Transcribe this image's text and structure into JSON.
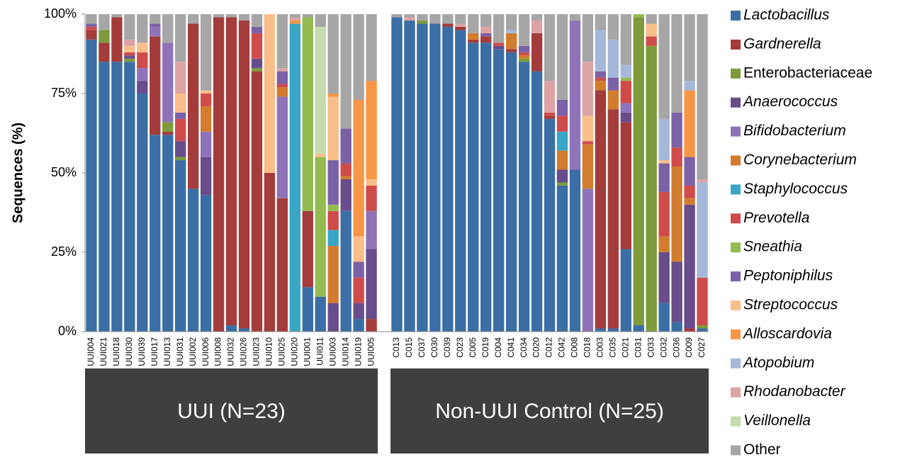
{
  "chart_data": {
    "type": "stacked_bar",
    "ylabel": "Sequences (%)",
    "ylim": [
      0,
      100
    ],
    "yticks": [
      {
        "value": 0,
        "label": "0%"
      },
      {
        "value": 25,
        "label": "25%"
      },
      {
        "value": 50,
        "label": "50%"
      },
      {
        "value": 75,
        "label": "75%"
      },
      {
        "value": 100,
        "label": "100%"
      }
    ],
    "categories": [
      "UUI004",
      "UUI021",
      "UUI018",
      "UUI030",
      "UUI039",
      "UUI017",
      "UUI013",
      "UUI031",
      "UUI002",
      "UUI006",
      "UUI008",
      "UUI032",
      "UUI026",
      "UUI023",
      "UUI010",
      "UUI025",
      "UUI020",
      "UUI001",
      "UUI011",
      "UUI003",
      "UUI014",
      "UUI019",
      "UUI005",
      null,
      "C013",
      "C015",
      "C037",
      "C030",
      "C039",
      "C023",
      "C005",
      "C019",
      "C004",
      "C041",
      "C034",
      "C020",
      "C012",
      "C042",
      "C008",
      "C018",
      "C003",
      "C035",
      "C021",
      "C031",
      "C033",
      "C032",
      "C036",
      "C009",
      "C027"
    ],
    "groups": [
      "UUI (N=23)",
      "Non-UUI Control (N=25)"
    ],
    "series": [
      {
        "name": "Lactobacillus",
        "italic": true,
        "color": "#3a6ea5",
        "values": [
          92,
          85,
          85,
          85,
          75,
          62,
          62,
          54,
          45,
          43,
          0,
          2,
          1,
          0,
          0,
          0,
          0,
          14,
          11,
          0,
          38,
          4,
          0,
          null,
          99,
          98,
          97,
          97,
          96,
          95,
          91,
          91,
          89,
          88,
          85,
          82,
          67,
          46,
          51,
          0,
          1,
          1,
          26,
          2,
          0,
          9,
          3,
          0,
          1
        ]
      },
      {
        "name": "Gardnerella",
        "italic": true,
        "color": "#a33c3a",
        "values": [
          3,
          6,
          14,
          0,
          0,
          31,
          1,
          0,
          52,
          0,
          99,
          97,
          97,
          82,
          50,
          42,
          0,
          24,
          0,
          0,
          0,
          0,
          4,
          null,
          0,
          0,
          0,
          0,
          1,
          1,
          1,
          2,
          0,
          1,
          0,
          12,
          1,
          0,
          0,
          0,
          75,
          69,
          40,
          0,
          0,
          0,
          0,
          1,
          0
        ]
      },
      {
        "name": "Enterobacteriaceae",
        "italic": false,
        "color": "#7e9a3b",
        "values": [
          0,
          4,
          0,
          1,
          0,
          0,
          3,
          1,
          0,
          0,
          0,
          0,
          0,
          1,
          0,
          0,
          0,
          0,
          0,
          0,
          0,
          0,
          0,
          null,
          0,
          0,
          1,
          0,
          0,
          0,
          0,
          0,
          0,
          0,
          1,
          0,
          0,
          1,
          0,
          0,
          0,
          0,
          0,
          97,
          90,
          0,
          0,
          0,
          1
        ]
      },
      {
        "name": "Anaerococcus",
        "italic": true,
        "color": "#684d8a",
        "values": [
          0,
          0,
          0,
          1,
          4,
          0,
          0,
          5,
          0,
          12,
          0,
          0,
          0,
          3,
          0,
          0,
          0,
          0,
          0,
          9,
          10,
          5,
          22,
          null,
          0,
          0,
          0,
          0,
          0,
          0,
          0,
          0,
          1,
          0,
          0,
          0,
          0,
          4,
          0,
          0,
          0,
          0,
          3,
          0,
          0,
          16,
          19,
          39,
          0
        ]
      },
      {
        "name": "Bifidobacterium",
        "italic": true,
        "color": "#8f73b8",
        "values": [
          0,
          0,
          0,
          0,
          4,
          3,
          25,
          0,
          0,
          8,
          0,
          0,
          0,
          0,
          0,
          32,
          0,
          0,
          0,
          0,
          0,
          0,
          12,
          null,
          0,
          0,
          0,
          0,
          0,
          0,
          0,
          0,
          0,
          0,
          0,
          0,
          0,
          0,
          47,
          45,
          0,
          0,
          3,
          0,
          0,
          0,
          0,
          0,
          0
        ]
      },
      {
        "name": "Corynebacterium",
        "italic": true,
        "color": "#d27c2f",
        "values": [
          0,
          0,
          0,
          0,
          0,
          0,
          0,
          0,
          0,
          8,
          0,
          0,
          0,
          0,
          0,
          3,
          0,
          0,
          0,
          18,
          1,
          0,
          0,
          null,
          0,
          0,
          0,
          0,
          0,
          0,
          2,
          0,
          0,
          5,
          1,
          0,
          0,
          6,
          0,
          14,
          3,
          6,
          0,
          0,
          0,
          5,
          30,
          2,
          0
        ]
      },
      {
        "name": "Staphylococcus",
        "italic": true,
        "color": "#3aa6c5",
        "values": [
          0,
          0,
          0,
          0,
          0,
          0,
          0,
          0,
          0,
          0,
          0,
          0,
          0,
          0,
          0,
          0,
          97,
          0,
          0,
          5,
          0,
          0,
          0,
          null,
          0,
          0,
          0,
          0,
          0,
          0,
          0,
          0,
          0,
          0,
          0,
          0,
          0,
          6,
          0,
          0,
          0,
          0,
          0,
          0,
          0,
          0,
          0,
          0,
          0
        ]
      },
      {
        "name": "Prevotella",
        "italic": true,
        "color": "#cf4c4b",
        "values": [
          1,
          0,
          0,
          1,
          5,
          0,
          0,
          7,
          0,
          4,
          0,
          0,
          0,
          8,
          0,
          1,
          0,
          0,
          0,
          6,
          4,
          8,
          8,
          null,
          0,
          0,
          0,
          0,
          0,
          0,
          0,
          0,
          1,
          0,
          1,
          0,
          1,
          5,
          0,
          1,
          1,
          0,
          7,
          0,
          3,
          14,
          6,
          4,
          15
        ]
      },
      {
        "name": "Sneathia",
        "italic": true,
        "color": "#94bb4f",
        "values": [
          0,
          0,
          0,
          0,
          0,
          0,
          0,
          0,
          0,
          0,
          0,
          0,
          0,
          0,
          0,
          0,
          0,
          61,
          44,
          2,
          0,
          0,
          0,
          null,
          0,
          0,
          0,
          0,
          0,
          0,
          0,
          0,
          0,
          0,
          0,
          0,
          0,
          0,
          0,
          0,
          0,
          0,
          1,
          1,
          0,
          0,
          0,
          0,
          0
        ]
      },
      {
        "name": "Peptoniphilus",
        "italic": true,
        "color": "#7b61a6",
        "values": [
          1,
          0,
          0,
          0,
          0,
          1,
          0,
          2,
          0,
          0,
          0,
          0,
          0,
          2,
          0,
          4,
          0,
          0,
          0,
          14,
          11,
          5,
          0,
          null,
          0,
          0,
          0,
          0,
          0,
          0,
          0,
          1,
          0,
          0,
          2,
          0,
          0,
          5,
          0,
          0,
          2,
          4,
          0,
          0,
          0,
          9,
          11,
          9,
          0
        ]
      },
      {
        "name": "Streptococcus",
        "italic": true,
        "color": "#f9be8a",
        "values": [
          0,
          0,
          0,
          2,
          3,
          0,
          0,
          6,
          0,
          1,
          0,
          0,
          0,
          0,
          50,
          0,
          0,
          0,
          1,
          20,
          0,
          8,
          2,
          null,
          0,
          0,
          0,
          0,
          0,
          0,
          0,
          0,
          0,
          0,
          0,
          0,
          0,
          0,
          0,
          8,
          0,
          0,
          0,
          0,
          4,
          1,
          0,
          0,
          0
        ]
      },
      {
        "name": "Alloscardovia",
        "italic": true,
        "color": "#f79646",
        "values": [
          0,
          0,
          0,
          0,
          0,
          0,
          0,
          0,
          0,
          0,
          0,
          0,
          0,
          0,
          0,
          0,
          1,
          0,
          0,
          1,
          0,
          43,
          31,
          null,
          0,
          0,
          0,
          0,
          0,
          0,
          0,
          0,
          0,
          0,
          0,
          0,
          0,
          0,
          0,
          0,
          0,
          0,
          0,
          0,
          0,
          0,
          0,
          21,
          0
        ]
      },
      {
        "name": "Atopobium",
        "italic": true,
        "color": "#a5b8d9",
        "values": [
          0,
          0,
          0,
          0,
          0,
          0,
          0,
          0,
          0,
          0,
          0,
          0,
          0,
          0,
          0,
          0,
          0,
          0,
          0,
          0,
          0,
          0,
          0,
          null,
          0,
          0,
          0,
          0,
          0,
          0,
          0,
          0,
          0,
          1,
          0,
          0,
          0,
          0,
          0,
          0,
          13,
          12,
          4,
          0,
          0,
          13,
          0,
          3,
          30
        ]
      },
      {
        "name": "Rhodanobacter",
        "italic": true,
        "color": "#dca4a4",
        "values": [
          0,
          0,
          0,
          2,
          0,
          0,
          0,
          10,
          0,
          0,
          0,
          0,
          0,
          0,
          0,
          1,
          1,
          0,
          0,
          0,
          0,
          0,
          0,
          null,
          0,
          1,
          0,
          0,
          0,
          1,
          0,
          2,
          0,
          0,
          0,
          4,
          10,
          0,
          0,
          17,
          0,
          0,
          0,
          0,
          0,
          0,
          0,
          0,
          1
        ]
      },
      {
        "name": "Veillonella",
        "italic": true,
        "color": "#c6dbae",
        "values": [
          0,
          0,
          0,
          0,
          0,
          0,
          0,
          0,
          0,
          0,
          0,
          0,
          0,
          0,
          0,
          0,
          0,
          0,
          40,
          0,
          0,
          0,
          0,
          null,
          0,
          0,
          0,
          0,
          0,
          0,
          0,
          0,
          0,
          0,
          0,
          0,
          0,
          0,
          0,
          0,
          0,
          0,
          0,
          0,
          0,
          0,
          0,
          0,
          0
        ]
      },
      {
        "name": "Other",
        "italic": false,
        "color": "#a6a6a6",
        "values": [
          3,
          5,
          1,
          8,
          9,
          3,
          9,
          15,
          3,
          24,
          1,
          1,
          2,
          4,
          0,
          17,
          1,
          1,
          4,
          25,
          36,
          27,
          21,
          null,
          1,
          1,
          2,
          3,
          3,
          3,
          6,
          4,
          9,
          5,
          10,
          2,
          21,
          27,
          2,
          15,
          5,
          8,
          16,
          0,
          3,
          33,
          31,
          21,
          52
        ]
      }
    ]
  }
}
